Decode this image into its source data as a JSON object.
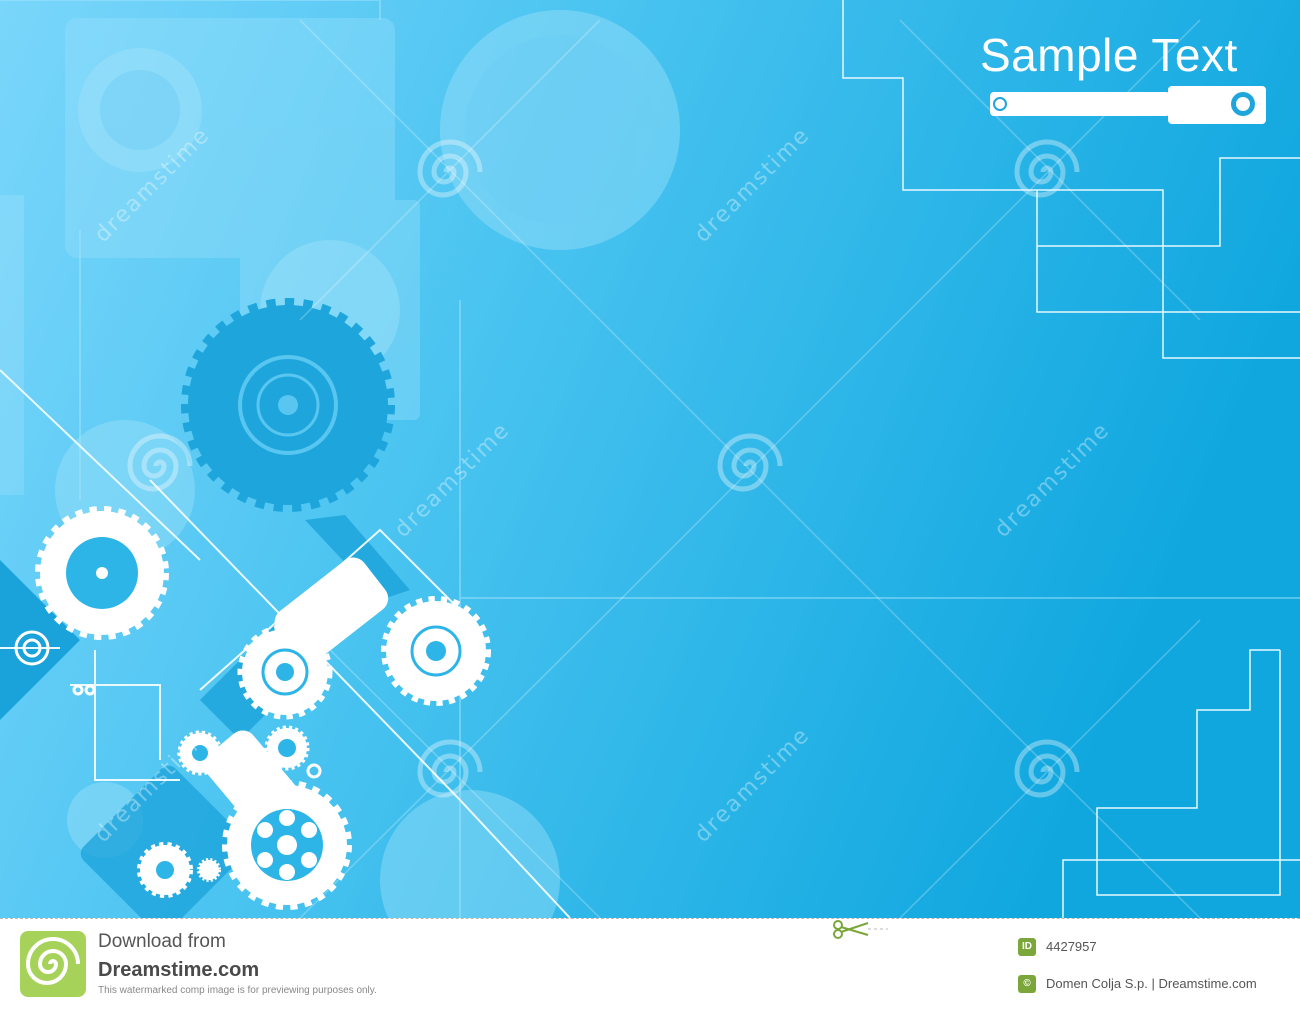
{
  "image": {
    "heading": "Sample Text",
    "watermark_text": "dreamstime",
    "background_colors": {
      "light": "#7ad6fb",
      "mid": "#3fbdee",
      "dark": "#0ea6df"
    }
  },
  "footer": {
    "download_label": "Download from",
    "brand": "Dreamstime.com",
    "notice": "This watermarked comp image is for previewing purposes only.",
    "id_badge": "ID",
    "id_number": "4427957",
    "copyright_badge": "©",
    "credit": "Domen Colja S.p. | Dreamstime.com",
    "logo_icon": "spiral-logo-icon",
    "scissors_icon": "scissors-icon"
  }
}
